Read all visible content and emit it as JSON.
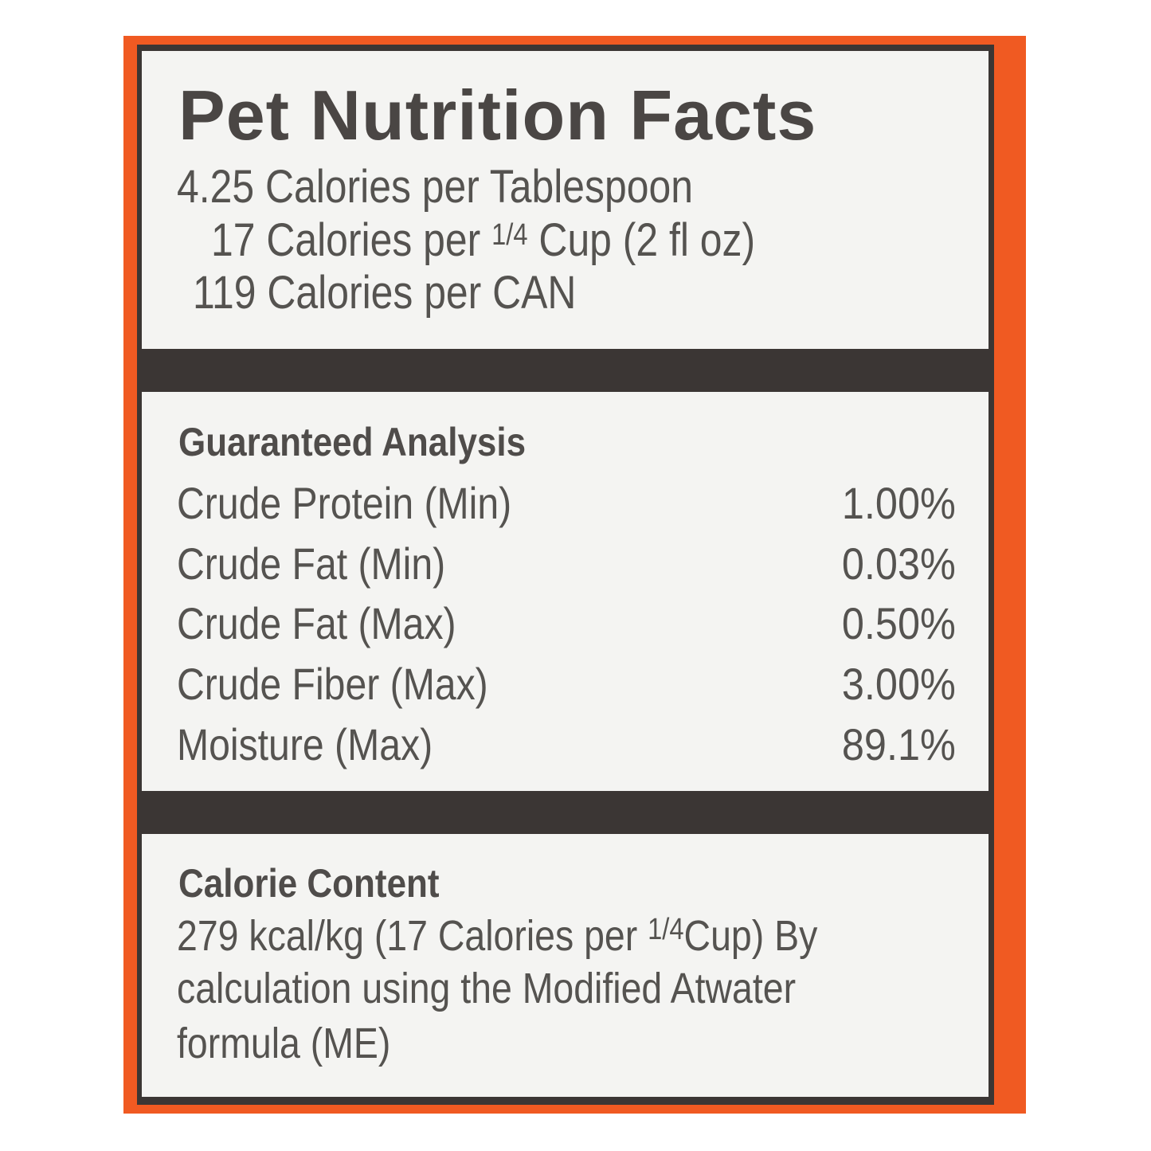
{
  "colors": {
    "background": "#f05a22",
    "frame": "#3b3634",
    "panel": "#f4f4f2",
    "text": "#555350"
  },
  "title": "Pet Nutrition Facts",
  "calories": [
    {
      "prefix": "4.25 Calories per Tablespoon"
    },
    {
      "prefix": "17 Calories per",
      "fraction": "1/4",
      "suffix": "Cup (2 fl oz)"
    },
    {
      "prefix": "119 Calories per CAN"
    }
  ],
  "guaranteed_analysis": {
    "heading": "Guaranteed Analysis",
    "rows": [
      {
        "label": "Crude Protein (Min)",
        "value": "1.00%"
      },
      {
        "label": "Crude Fat (Min)",
        "value": "0.03%"
      },
      {
        "label": "Crude Fat (Max)",
        "value": "0.50%"
      },
      {
        "label": "Crude Fiber (Max)",
        "value": "3.00%"
      },
      {
        "label": "Moisture (Max)",
        "value": "89.1%"
      }
    ]
  },
  "calorie_content": {
    "heading": "Calorie Content",
    "line1_prefix": "279 kcal/kg (17 Calories per",
    "line1_fraction": "1/4",
    "line1_suffix": "Cup) By",
    "line2": "calculation using the Modified Atwater",
    "line3": "formula (ME)"
  }
}
